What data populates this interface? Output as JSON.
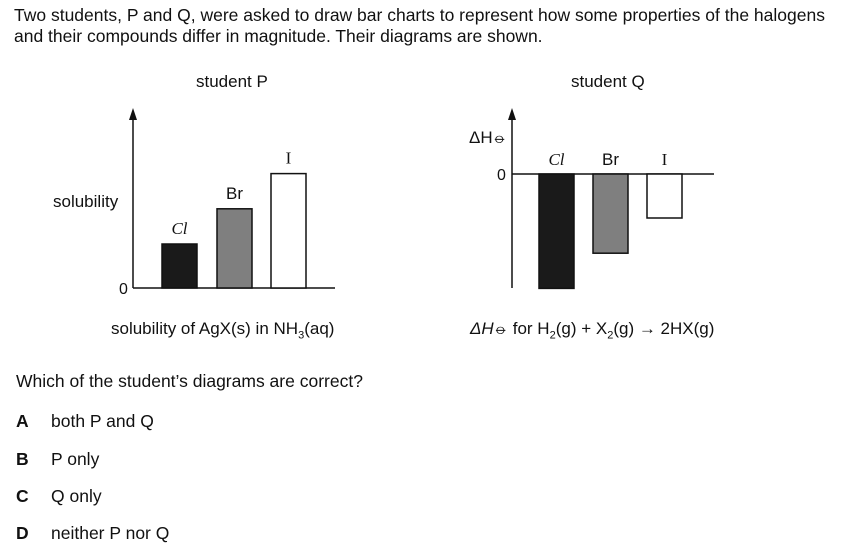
{
  "intro_text": "Two students, P and Q, were asked to draw bar charts to represent how some properties of the halogens and their compounds differ in magnitude. Their diagrams are shown.",
  "question": "Which of the student’s diagrams are correct?",
  "options": [
    {
      "letter": "A",
      "text": "both P and Q"
    },
    {
      "letter": "B",
      "text": "P only"
    },
    {
      "letter": "C",
      "text": "Q only"
    },
    {
      "letter": "D",
      "text": "neither P nor Q"
    }
  ],
  "chart_data": [
    {
      "type": "bar",
      "title": "student P",
      "categories": [
        "Cl",
        "Br",
        "I"
      ],
      "values": [
        1.0,
        1.8,
        2.6
      ],
      "colors": [
        "#1a1a1a",
        "#7f7f7f",
        "#ffffff"
      ],
      "ylabel": "solubility",
      "ytick": "0",
      "caption": "solubility of AgX(s) in NH3(aq)",
      "ylim": [
        0,
        3.6
      ]
    },
    {
      "type": "bar",
      "title": "student Q",
      "categories": [
        "Cl",
        "Br",
        "I"
      ],
      "values": [
        -2.6,
        -1.8,
        -1.0
      ],
      "colors": [
        "#1a1a1a",
        "#7f7f7f",
        "#ffffff"
      ],
      "ylabel": "ΔH⦵",
      "ytick": "0",
      "caption": "ΔH⦵ for H2(g) + X2(g) → 2HX(g)",
      "ylim": [
        -2.6,
        1.6
      ]
    }
  ]
}
